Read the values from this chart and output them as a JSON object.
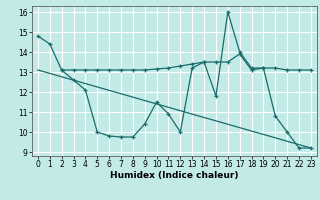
{
  "xlabel": "Humidex (Indice chaleur)",
  "xlim": [
    -0.5,
    23.5
  ],
  "ylim": [
    8.8,
    16.3
  ],
  "yticks": [
    9,
    10,
    11,
    12,
    13,
    14,
    15,
    16
  ],
  "xticks": [
    0,
    1,
    2,
    3,
    4,
    5,
    6,
    7,
    8,
    9,
    10,
    11,
    12,
    13,
    14,
    15,
    16,
    17,
    18,
    19,
    20,
    21,
    22,
    23
  ],
  "bg_color": "#c2ebe8",
  "grid_color": "#ffffff",
  "line_color": "#1a6b6b",
  "line1_x": [
    0,
    1,
    2,
    3,
    4,
    5,
    6,
    7,
    8,
    9,
    10,
    11,
    12,
    13,
    14,
    15,
    16,
    17,
    18,
    19,
    20,
    21,
    22,
    23
  ],
  "line1_y": [
    14.8,
    14.4,
    13.1,
    12.6,
    12.1,
    10.0,
    9.8,
    9.75,
    9.75,
    10.4,
    11.5,
    10.9,
    10.0,
    13.2,
    13.5,
    11.8,
    16.0,
    14.0,
    13.2,
    13.2,
    10.8,
    10.0,
    9.2,
    9.2
  ],
  "line2_x": [
    2,
    3,
    4,
    5,
    6,
    7,
    8,
    9,
    10,
    11,
    12,
    13,
    14,
    15,
    16,
    17,
    18,
    19,
    20,
    21,
    22,
    23
  ],
  "line2_y": [
    13.1,
    13.1,
    13.1,
    13.1,
    13.1,
    13.1,
    13.1,
    13.1,
    13.15,
    13.2,
    13.3,
    13.4,
    13.5,
    13.5,
    13.5,
    13.9,
    13.1,
    13.2,
    13.2,
    13.1,
    13.1,
    13.1
  ],
  "line3_x": [
    0,
    23
  ],
  "line3_y": [
    13.1,
    9.2
  ]
}
